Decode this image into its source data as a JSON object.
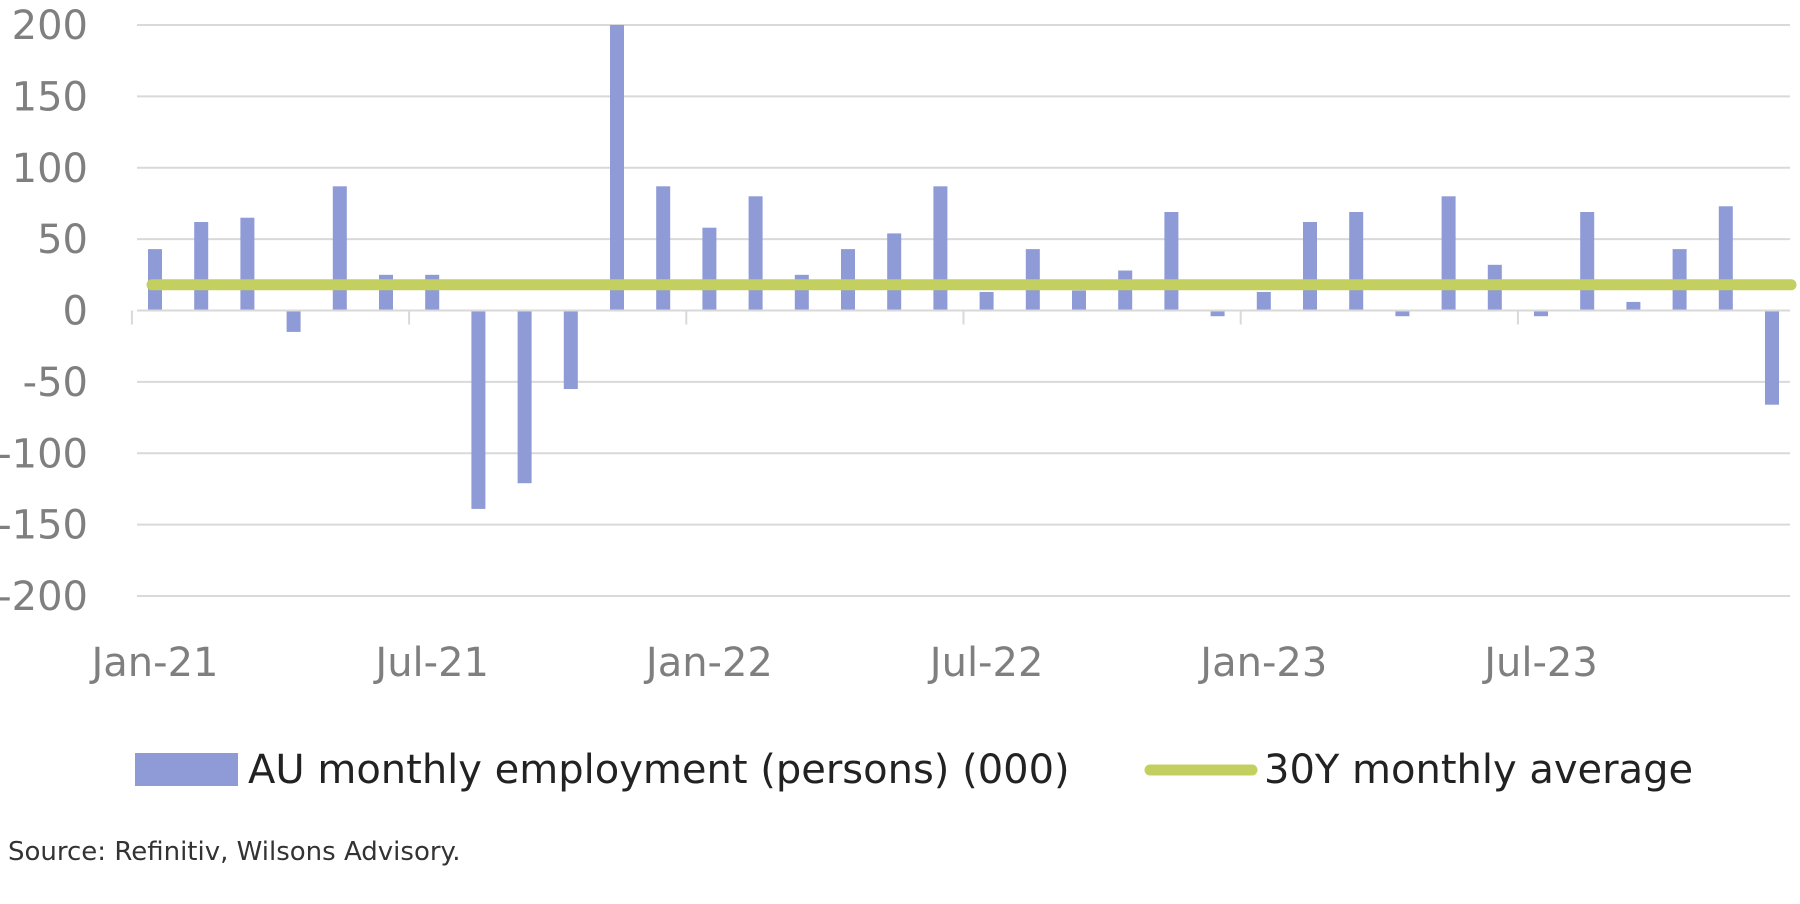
{
  "chart_data": {
    "type": "bar",
    "x_dates": [
      "Jan-21",
      "Feb-21",
      "Mar-21",
      "Apr-21",
      "May-21",
      "Jun-21",
      "Jul-21",
      "Aug-21",
      "Sep-21",
      "Oct-21",
      "Nov-21",
      "Dec-21",
      "Jan-22",
      "Feb-22",
      "Mar-22",
      "Apr-22",
      "May-22",
      "Jun-22",
      "Jul-22",
      "Aug-22",
      "Sep-22",
      "Oct-22",
      "Nov-22",
      "Dec-22",
      "Jan-23",
      "Feb-23",
      "Mar-23",
      "Apr-23",
      "May-23",
      "Jun-23",
      "Jul-23",
      "Aug-23",
      "Sep-23",
      "Oct-23",
      "Nov-23",
      "Dec-23"
    ],
    "x_tick_labels": [
      {
        "label": "Jan-21",
        "index": 0
      },
      {
        "label": "Jul-21",
        "index": 6
      },
      {
        "label": "Jan-22",
        "index": 12
      },
      {
        "label": "Jul-22",
        "index": 18
      },
      {
        "label": "Jan-23",
        "index": 24
      },
      {
        "label": "Jul-23",
        "index": 30
      }
    ],
    "y_ticks": [
      "200",
      "150",
      "100",
      "50",
      "0",
      "-50",
      "-100",
      "-150",
      "-200"
    ],
    "ylim": [
      -200,
      200
    ],
    "grid": true,
    "series": [
      {
        "name": "AU monthly employment (persons) (000)",
        "kind": "bar",
        "color": "#8e9bd6",
        "values": [
          43,
          62,
          65,
          -15,
          87,
          25,
          25,
          -139,
          -121,
          -55,
          200,
          87,
          58,
          80,
          25,
          43,
          54,
          87,
          13,
          43,
          14,
          28,
          69,
          -4,
          13,
          62,
          69,
          -4,
          80,
          32,
          -4,
          69,
          6,
          43,
          73,
          -66
        ]
      },
      {
        "name": "30Y monthly average",
        "kind": "line",
        "color": "#c3d060",
        "value": 18
      }
    ],
    "legend_position": "bottom"
  },
  "source": "Source: Refinitiv, Wilsons Advisory."
}
